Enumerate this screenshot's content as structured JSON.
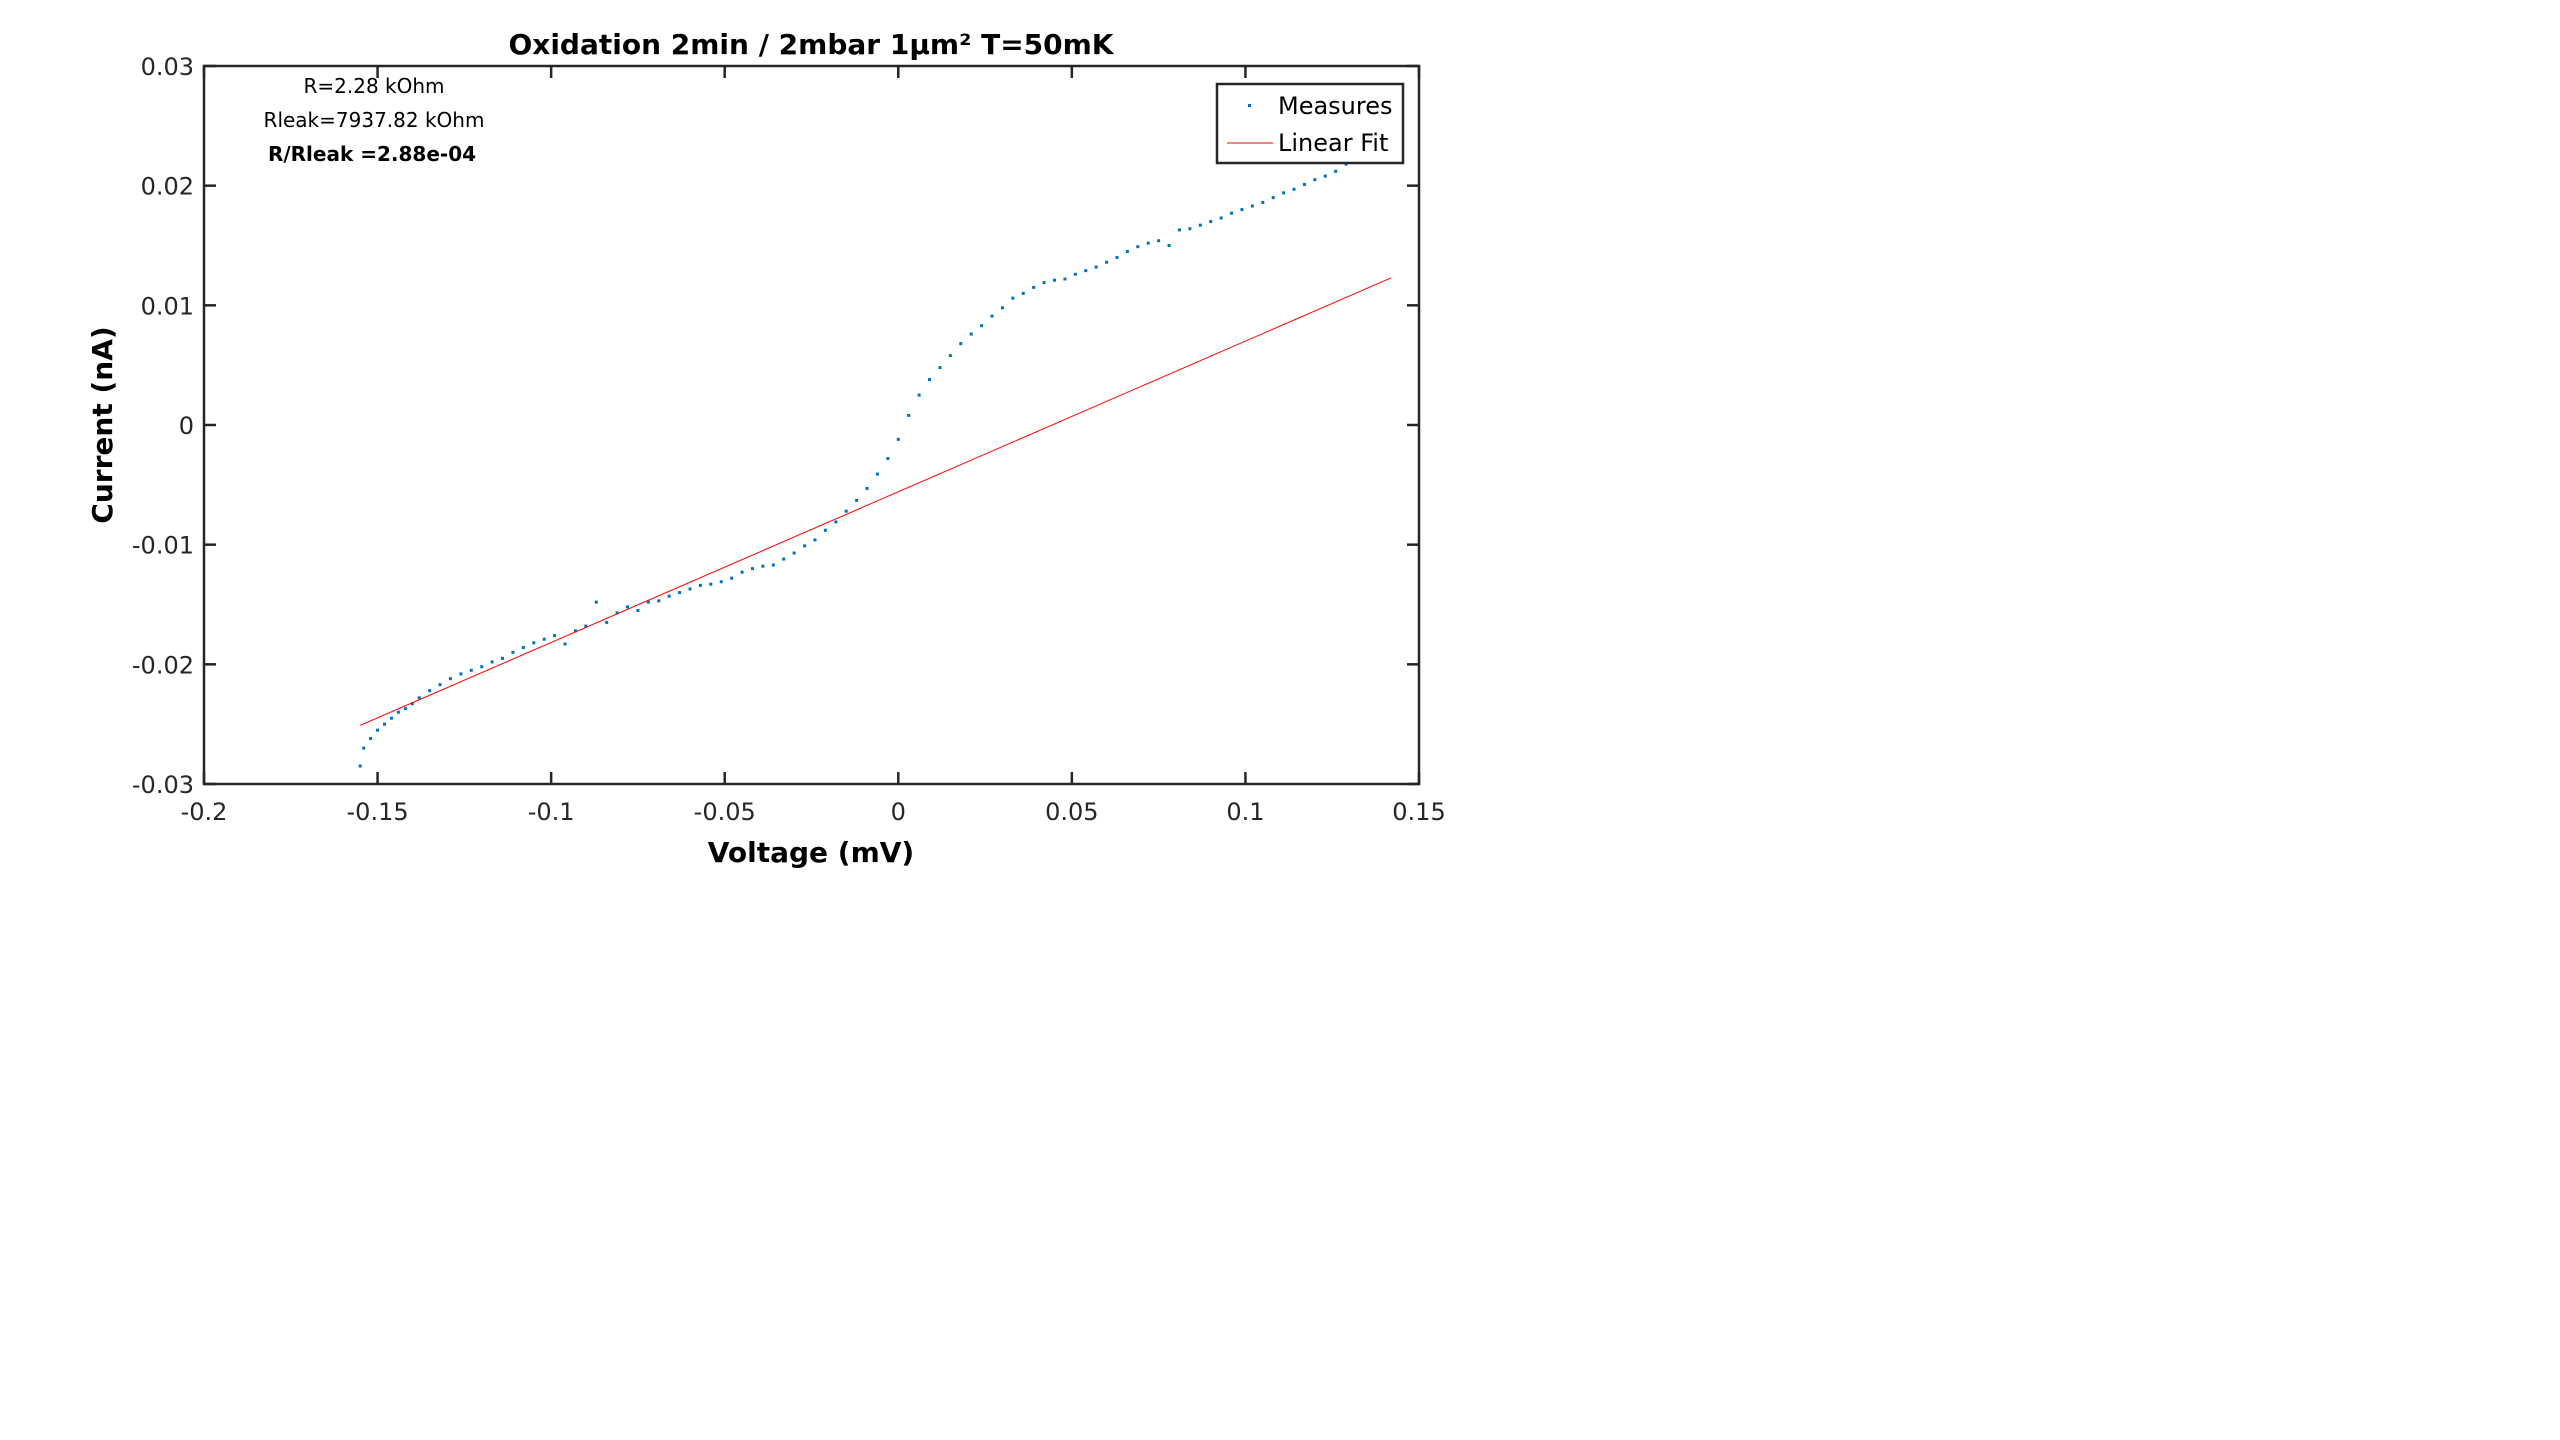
{
  "chart_data": {
    "type": "scatter",
    "title": "Oxidation 2min / 2mbar 1µm² T=50mK",
    "xlabel": "Voltage (mV)",
    "ylabel": "Current (nA)",
    "xlim": [
      -0.2,
      0.15
    ],
    "ylim": [
      -0.03,
      0.03
    ],
    "xticks": [
      -0.2,
      -0.15,
      -0.1,
      -0.05,
      0,
      0.05,
      0.1,
      0.15
    ],
    "xtick_labels": [
      "-0.2",
      "-0.15",
      "-0.1",
      "-0.05",
      "0",
      "0.05",
      "0.1",
      "0.15"
    ],
    "yticks": [
      -0.03,
      -0.02,
      -0.01,
      0,
      0.01,
      0.02,
      0.03
    ],
    "ytick_labels": [
      "-0.03",
      "-0.02",
      "-0.01",
      "0",
      "0.01",
      "0.02",
      "0.03"
    ],
    "grid": false,
    "legend_position": "top-right",
    "annotations": [
      {
        "text": "R=2.28 kOhm",
        "bold": false
      },
      {
        "text": "Rleak=7937.82 kOhm",
        "bold": false
      },
      {
        "text": "R/Rleak =2.88e-04",
        "bold": true
      }
    ],
    "series": [
      {
        "name": "Measures",
        "kind": "points",
        "color": "#0072BD",
        "x": [
          -0.155,
          -0.154,
          -0.152,
          -0.15,
          -0.148,
          -0.146,
          -0.144,
          -0.142,
          -0.14,
          -0.138,
          -0.135,
          -0.132,
          -0.129,
          -0.126,
          -0.123,
          -0.12,
          -0.117,
          -0.114,
          -0.111,
          -0.108,
          -0.105,
          -0.102,
          -0.099,
          -0.096,
          -0.093,
          -0.09,
          -0.087,
          -0.084,
          -0.081,
          -0.078,
          -0.075,
          -0.072,
          -0.069,
          -0.066,
          -0.063,
          -0.06,
          -0.057,
          -0.054,
          -0.051,
          -0.048,
          -0.045,
          -0.042,
          -0.039,
          -0.036,
          -0.033,
          -0.03,
          -0.027,
          -0.024,
          -0.021,
          -0.018,
          -0.015,
          -0.012,
          -0.009,
          -0.006,
          -0.003,
          0.0,
          0.003,
          0.006,
          0.009,
          0.012,
          0.015,
          0.018,
          0.021,
          0.024,
          0.027,
          0.03,
          0.033,
          0.036,
          0.039,
          0.042,
          0.045,
          0.048,
          0.051,
          0.054,
          0.057,
          0.06,
          0.063,
          0.066,
          0.069,
          0.072,
          0.075,
          0.078,
          0.081,
          0.084,
          0.087,
          0.09,
          0.093,
          0.096,
          0.099,
          0.102,
          0.105,
          0.108,
          0.111,
          0.114,
          0.117,
          0.12,
          0.123,
          0.126,
          0.129
        ],
        "y": [
          -0.0285,
          -0.027,
          -0.0262,
          -0.0255,
          -0.025,
          -0.0245,
          -0.024,
          -0.0237,
          -0.0233,
          -0.0228,
          -0.0222,
          -0.0217,
          -0.0212,
          -0.0208,
          -0.0205,
          -0.0202,
          -0.0198,
          -0.0195,
          -0.019,
          -0.0186,
          -0.0182,
          -0.0179,
          -0.0176,
          -0.0183,
          -0.0172,
          -0.0168,
          -0.0148,
          -0.0165,
          -0.0157,
          -0.0152,
          -0.0155,
          -0.0148,
          -0.0147,
          -0.0143,
          -0.014,
          -0.0137,
          -0.0134,
          -0.0133,
          -0.0131,
          -0.0128,
          -0.0123,
          -0.012,
          -0.0118,
          -0.0117,
          -0.0112,
          -0.0107,
          -0.0101,
          -0.0096,
          -0.0088,
          -0.0081,
          -0.0072,
          -0.0063,
          -0.0053,
          -0.0041,
          -0.0028,
          -0.0012,
          0.0008,
          0.0025,
          0.0038,
          0.0048,
          0.0058,
          0.0068,
          0.0076,
          0.0083,
          0.0091,
          0.0098,
          0.0106,
          0.011,
          0.0115,
          0.0119,
          0.0121,
          0.0122,
          0.0126,
          0.0129,
          0.0132,
          0.0136,
          0.014,
          0.0145,
          0.0149,
          0.0152,
          0.0154,
          0.015,
          0.0163,
          0.0164,
          0.0167,
          0.017,
          0.0173,
          0.0177,
          0.018,
          0.0183,
          0.0186,
          0.019,
          0.0194,
          0.0197,
          0.0201,
          0.0205,
          0.0208,
          0.0212,
          0.0218
        ]
      },
      {
        "name": "Linear Fit",
        "kind": "line",
        "color": "#FF0000",
        "x": [
          -0.155,
          0.142
        ],
        "y": [
          -0.0251,
          0.0123
        ]
      }
    ]
  }
}
